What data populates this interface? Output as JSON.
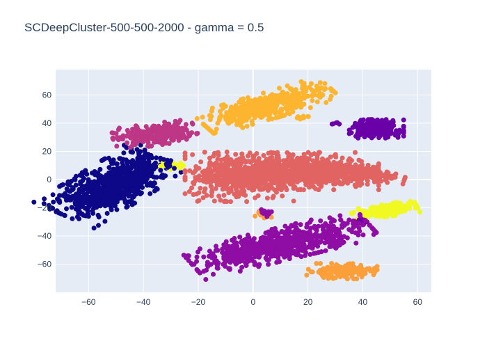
{
  "chart_data": {
    "type": "scatter",
    "title": "SCDeepCluster-500-500-2000 - gamma = 0.5",
    "xlabel": "",
    "ylabel": "",
    "xlim": [
      -72,
      65
    ],
    "ylim": [
      -80,
      78
    ],
    "x_ticks": [
      -60,
      -40,
      -20,
      0,
      20,
      40,
      60
    ],
    "y_ticks": [
      -60,
      -40,
      -20,
      0,
      20,
      40,
      60
    ],
    "grid": true,
    "legend": "none",
    "colors": {
      "plot_bg": "#e5ecf6",
      "grid": "#ffffff",
      "text": "#2a3f5f"
    },
    "clusters": [
      {
        "color": "#0d0887",
        "cx": -52,
        "cy": -5,
        "sx": 6.5,
        "sy": 12,
        "rot": -40,
        "n": 700
      },
      {
        "color": "#0d0887",
        "cx": -41,
        "cy": 7,
        "sx": 2.2,
        "sy": 4.5,
        "rot": 0,
        "n": 60
      },
      {
        "color": "#0d0887",
        "cx": -45,
        "cy": 20,
        "sx": 2.5,
        "sy": 2.5,
        "rot": 0,
        "n": 12
      },
      {
        "color": "#bd3786",
        "cx": -36,
        "cy": 32,
        "sx": 7,
        "sy": 3.5,
        "rot": 15,
        "n": 250
      },
      {
        "color": "#f0f921",
        "cx": -29,
        "cy": 10,
        "sx": 2.2,
        "sy": 1.2,
        "rot": 0,
        "n": 30
      },
      {
        "color": "#0d0887",
        "cx": -31,
        "cy": 11,
        "sx": 2,
        "sy": 2,
        "rot": 0,
        "n": 12
      },
      {
        "color": "#fdb42f",
        "cx": 5,
        "cy": 52,
        "sx": 12,
        "sy": 4,
        "rot": 30,
        "n": 420
      },
      {
        "color": "#fdb42f",
        "cx": 17,
        "cy": 43,
        "sx": 1.5,
        "sy": 1.5,
        "rot": 0,
        "n": 10
      },
      {
        "color": "#e16462",
        "cx": -5,
        "cy": 2,
        "sx": 9,
        "sy": 8,
        "rot": 0,
        "n": 420
      },
      {
        "color": "#e16462",
        "cx": 15,
        "cy": 6,
        "sx": 14,
        "sy": 6,
        "rot": 0,
        "n": 700
      },
      {
        "color": "#e16462",
        "cx": 38,
        "cy": 4,
        "sx": 8,
        "sy": 3,
        "rot": -10,
        "n": 200
      },
      {
        "color": "#6a00a8",
        "cx": 45,
        "cy": 36,
        "sx": 4.5,
        "sy": 3,
        "rot": 0,
        "n": 260
      },
      {
        "color": "#6a00a8",
        "cx": 31,
        "cy": 39.5,
        "sx": 1,
        "sy": 0.6,
        "rot": 0,
        "n": 5
      },
      {
        "color": "#f0f921",
        "cx": 48,
        "cy": -22,
        "sx": 5.5,
        "sy": 2,
        "rot": 15,
        "n": 200
      },
      {
        "color": "#6a00a8",
        "cx": 40,
        "cy": -30,
        "sx": 1.2,
        "sy": 1.2,
        "rot": 0,
        "n": 10
      },
      {
        "color": "#8f0da4",
        "cx": 10,
        "cy": -46,
        "sx": 16,
        "sy": 5,
        "rot": 25,
        "n": 700
      },
      {
        "color": "#fb9f3a",
        "cx": 32,
        "cy": -65,
        "sx": 6,
        "sy": 2.5,
        "rot": 0,
        "n": 150
      },
      {
        "color": "#fb9f3a",
        "cx": 3.5,
        "cy": -25,
        "sx": 1.5,
        "sy": 1.5,
        "rot": 0,
        "n": 18
      },
      {
        "color": "#8f0da4",
        "cx": 4.5,
        "cy": -24,
        "sx": 1.5,
        "sy": 1.2,
        "rot": 0,
        "n": 12
      }
    ]
  }
}
